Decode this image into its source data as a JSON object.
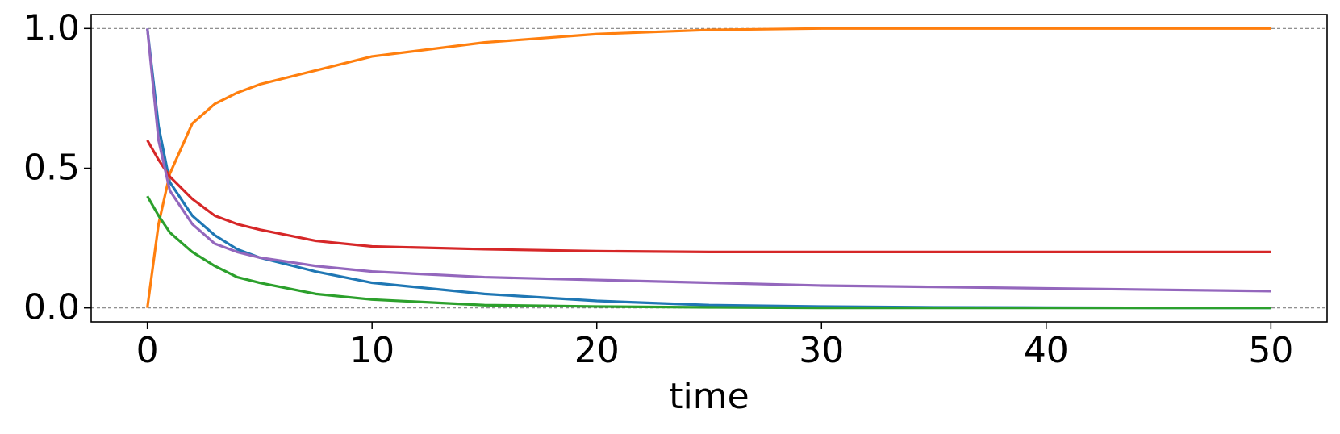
{
  "chart_data": {
    "type": "line",
    "xlabel": "time",
    "x": [
      0,
      0.5,
      1,
      2,
      3,
      4,
      5,
      7.5,
      10,
      15,
      20,
      25,
      30,
      35,
      40,
      45,
      50
    ],
    "series": [
      {
        "color": "#1f77b4",
        "values": [
          1.0,
          0.65,
          0.45,
          0.33,
          0.26,
          0.21,
          0.18,
          0.13,
          0.09,
          0.05,
          0.025,
          0.01,
          0.005,
          0.002,
          0.001,
          0,
          0
        ]
      },
      {
        "color": "#ff7f0e",
        "values": [
          0,
          0.3,
          0.48,
          0.66,
          0.73,
          0.77,
          0.8,
          0.85,
          0.9,
          0.95,
          0.98,
          0.995,
          1.0,
          1.0,
          1.0,
          1.0,
          1.0
        ]
      },
      {
        "color": "#2ca02c",
        "values": [
          0.4,
          0.33,
          0.27,
          0.2,
          0.15,
          0.11,
          0.09,
          0.05,
          0.03,
          0.01,
          0.005,
          0.002,
          0,
          0,
          0,
          0,
          0
        ]
      },
      {
        "color": "#d62728",
        "values": [
          0.6,
          0.53,
          0.47,
          0.39,
          0.33,
          0.3,
          0.28,
          0.24,
          0.22,
          0.21,
          0.203,
          0.2,
          0.2,
          0.2,
          0.2,
          0.2,
          0.2
        ]
      },
      {
        "color": "#9467bd",
        "values": [
          1.0,
          0.6,
          0.42,
          0.3,
          0.23,
          0.2,
          0.18,
          0.15,
          0.13,
          0.11,
          0.1,
          0.09,
          0.08,
          0.075,
          0.07,
          0.065,
          0.06
        ]
      }
    ],
    "xlim": [
      -2.5,
      52.5
    ],
    "ylim": [
      -0.05,
      1.05
    ],
    "xticks": [
      0,
      10,
      20,
      30,
      40,
      50
    ],
    "yticks": [
      {
        "value": 0,
        "label": "0.0"
      },
      {
        "value": 0.5,
        "label": "0.5"
      },
      {
        "value": 1,
        "label": "1.0"
      }
    ],
    "hlines": [
      0,
      1
    ]
  }
}
